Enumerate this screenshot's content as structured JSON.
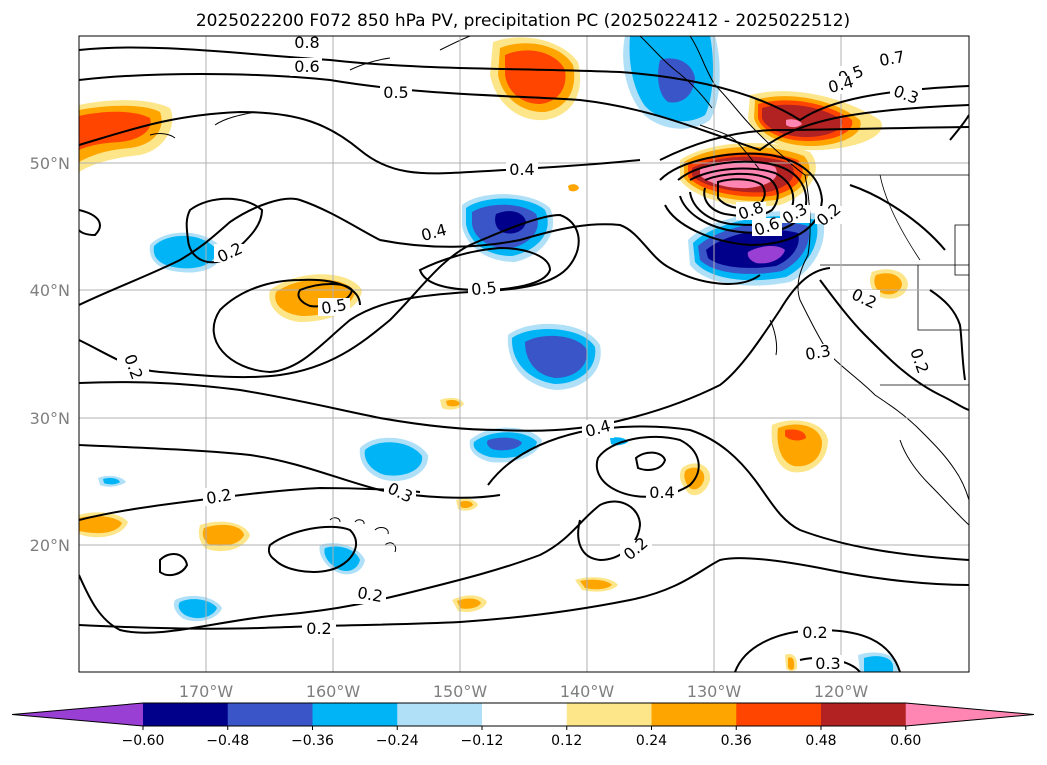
{
  "title": "2025022200 F072 850 hPa PV, precipitation PC (2025022412 - 2025022512)",
  "map": {
    "extent": {
      "lon_min": -180,
      "lon_max": -110,
      "lat_min": 10,
      "lat_max": 60
    },
    "lat_labels": [
      "50°N",
      "40°N",
      "30°N",
      "20°N"
    ],
    "lon_labels": [
      "170°W",
      "160°W",
      "150°W",
      "140°W",
      "130°W",
      "120°W"
    ],
    "gridlines": true
  },
  "colorbar": {
    "ticks": [
      "−0.60",
      "−0.48",
      "−0.36",
      "−0.24",
      "−0.12",
      "0.12",
      "0.24",
      "0.36",
      "0.48",
      "0.60"
    ],
    "colors": [
      "#9a3fd4",
      "#00008b",
      "#3a55c8",
      "#00b4f5",
      "#afe0f8",
      "#ffffff",
      "#fde68a",
      "#ffa500",
      "#ff4500",
      "#b22222",
      "#ff85b2"
    ],
    "extend": "both"
  },
  "contour_labels": [
    "0.8",
    "0.6",
    "0.5",
    "0.4",
    "0.3",
    "0.2",
    "0.7",
    "0.5",
    "0.4",
    "0.3",
    "0.2",
    "0.5",
    "0.4",
    "0.5",
    "0.2",
    "0.2",
    "0.8",
    "0.6",
    "0.2",
    "0.4",
    "0.2",
    "0.3",
    "0.4",
    "0.2",
    "0.3",
    "0.2",
    "0.2",
    "0.2",
    "0.3"
  ]
}
